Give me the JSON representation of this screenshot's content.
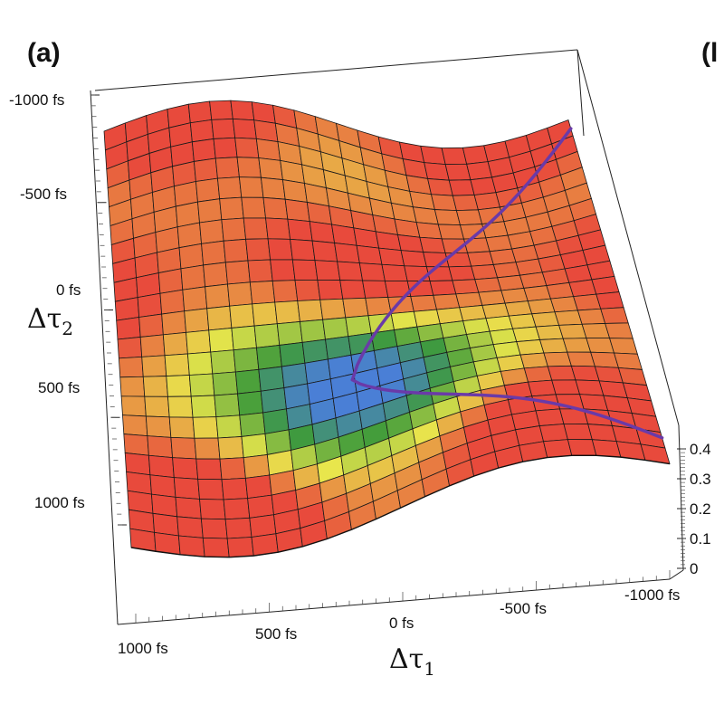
{
  "panel_label": "(a)",
  "next_panel_label": "(l",
  "chart_data": {
    "type": "surface",
    "x_label_symbol": "Δτ",
    "x_label_sub": "1",
    "y_label_symbol": "Δτ",
    "y_label_sub": "2",
    "x_ticks": [
      "1000 fs",
      "500 fs",
      "0 fs",
      "-500 fs",
      "-1000 fs"
    ],
    "y_ticks": [
      "-1000 fs",
      "-500 fs",
      "0 fs",
      "500 fs",
      "1000 fs"
    ],
    "z_ticks": [
      "0.4",
      "0.3",
      "0.2",
      "0.1",
      "0"
    ],
    "x_range": [
      1000,
      -1000
    ],
    "y_range": [
      -1000,
      1000
    ],
    "z_range": [
      0,
      0.4
    ],
    "colormap": [
      "#4a7fd6",
      "#3f9b3a",
      "#e8e64c",
      "#e84a3c"
    ],
    "path_color": "#6a3aa8",
    "minimum": {
      "x": 100,
      "y": 300,
      "z": 0.0
    },
    "paths": [
      {
        "from": [
          100,
          300
        ],
        "to": [
          -1000,
          -950
        ]
      },
      {
        "from": [
          100,
          300
        ],
        "to": [
          -1000,
          850
        ]
      }
    ]
  }
}
